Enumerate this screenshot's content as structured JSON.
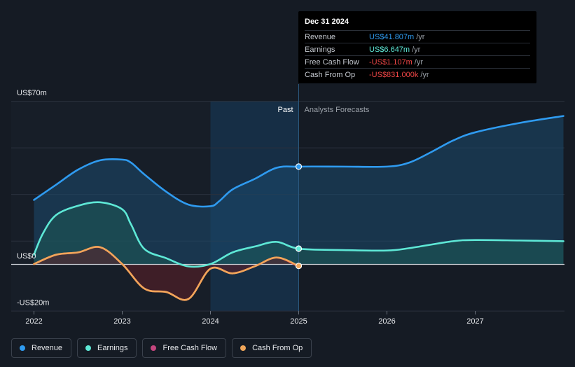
{
  "tooltip": {
    "date": "Dec 31 2024",
    "rows": [
      {
        "label": "Revenue",
        "value": "US$41.807m",
        "unit": "/yr",
        "color": "#2f9bf0"
      },
      {
        "label": "Earnings",
        "value": "US$6.647m",
        "unit": "/yr",
        "color": "#5ee8d6"
      },
      {
        "label": "Free Cash Flow",
        "value": "-US$1.107m",
        "unit": "/yr",
        "color": "#ef4646"
      },
      {
        "label": "Cash From Op",
        "value": "-US$831.000k",
        "unit": "/yr",
        "color": "#ef4646"
      }
    ]
  },
  "legend": [
    {
      "label": "Revenue",
      "color": "#2f9bf0"
    },
    {
      "label": "Earnings",
      "color": "#5ee8d6"
    },
    {
      "label": "Free Cash Flow",
      "color": "#c4467e"
    },
    {
      "label": "Cash From Op",
      "color": "#f0a65a"
    }
  ],
  "chart_data": {
    "type": "line",
    "title": "",
    "xlabel": "",
    "ylabel": "",
    "y_tick_labels": [
      {
        "value": 70,
        "label": "US$70m"
      },
      {
        "value": 0,
        "label": "US$0"
      },
      {
        "value": -20,
        "label": "-US$20m"
      }
    ],
    "x_ticks": [
      {
        "value": 2022,
        "label": "2022"
      },
      {
        "value": 2023,
        "label": "2023"
      },
      {
        "value": 2024,
        "label": "2024"
      },
      {
        "value": 2025,
        "label": "2025"
      },
      {
        "value": 2026,
        "label": "2026"
      },
      {
        "value": 2027,
        "label": "2027"
      }
    ],
    "xlim": [
      2021.75,
      2028.0
    ],
    "ylim": [
      -20,
      70
    ],
    "divider_x": 2025.0,
    "highlight_start_x": 2024.0,
    "past_label": "Past",
    "forecast_label": "Analysts Forecasts",
    "series": [
      {
        "name": "Revenue",
        "color": "#2f9bf0",
        "fill": "#1b4a6e",
        "highlight_end": true,
        "points": [
          [
            2022.0,
            27.5
          ],
          [
            2022.25,
            34
          ],
          [
            2022.5,
            40.5
          ],
          [
            2022.75,
            44.5
          ],
          [
            2023.0,
            44.8
          ],
          [
            2023.1,
            43.5
          ],
          [
            2023.25,
            38.5
          ],
          [
            2023.5,
            31
          ],
          [
            2023.75,
            25.5
          ],
          [
            2024.0,
            24.8
          ],
          [
            2024.1,
            27
          ],
          [
            2024.25,
            32
          ],
          [
            2024.5,
            36.5
          ],
          [
            2024.75,
            41.3
          ],
          [
            2025.0,
            41.8
          ],
          [
            2025.5,
            41.8
          ],
          [
            2026.0,
            41.8
          ],
          [
            2026.25,
            43.5
          ],
          [
            2026.5,
            48
          ],
          [
            2026.75,
            53
          ],
          [
            2027.0,
            56.5
          ],
          [
            2027.5,
            60.5
          ],
          [
            2028.0,
            63.5
          ]
        ]
      },
      {
        "name": "Earnings",
        "color": "#5ee8d6",
        "fill": "#1e5a55",
        "highlight_end": true,
        "points": [
          [
            2022.0,
            4
          ],
          [
            2022.1,
            13
          ],
          [
            2022.25,
            21
          ],
          [
            2022.5,
            25
          ],
          [
            2022.75,
            26.5
          ],
          [
            2023.0,
            23.5
          ],
          [
            2023.1,
            17
          ],
          [
            2023.25,
            6.5
          ],
          [
            2023.5,
            2.5
          ],
          [
            2023.75,
            -1
          ],
          [
            2024.0,
            0
          ],
          [
            2024.25,
            5
          ],
          [
            2024.5,
            7.5
          ],
          [
            2024.75,
            9.5
          ],
          [
            2025.0,
            6.6
          ],
          [
            2025.5,
            6
          ],
          [
            2026.0,
            5.8
          ],
          [
            2026.25,
            6.8
          ],
          [
            2026.75,
            9.8
          ],
          [
            2027.0,
            10.3
          ],
          [
            2027.5,
            10.1
          ],
          [
            2028.0,
            9.8
          ]
        ]
      },
      {
        "name": "Free Cash Flow",
        "color": "#ef4646",
        "fill": "#5e1f26",
        "highlight_end": true,
        "points": [
          [
            2022.0,
            0
          ],
          [
            2022.25,
            4
          ],
          [
            2022.5,
            5
          ],
          [
            2022.75,
            7.2
          ],
          [
            2023.0,
            0
          ],
          [
            2023.25,
            -10.5
          ],
          [
            2023.5,
            -12
          ],
          [
            2023.75,
            -15
          ],
          [
            2024.0,
            -2
          ],
          [
            2024.25,
            -4
          ],
          [
            2024.5,
            -1
          ],
          [
            2024.75,
            2.8
          ],
          [
            2025.0,
            -1.1
          ]
        ]
      },
      {
        "name": "Cash From Op",
        "color": "#f0a65a",
        "fill": "none",
        "highlight_end": true,
        "points": [
          [
            2022.0,
            0
          ],
          [
            2022.25,
            4
          ],
          [
            2022.5,
            5
          ],
          [
            2022.75,
            7.2
          ],
          [
            2023.0,
            0
          ],
          [
            2023.25,
            -10.5
          ],
          [
            2023.5,
            -12
          ],
          [
            2023.75,
            -15
          ],
          [
            2024.0,
            -2
          ],
          [
            2024.25,
            -4
          ],
          [
            2024.5,
            -1
          ],
          [
            2024.75,
            2.8
          ],
          [
            2025.0,
            -0.8
          ]
        ]
      }
    ]
  }
}
